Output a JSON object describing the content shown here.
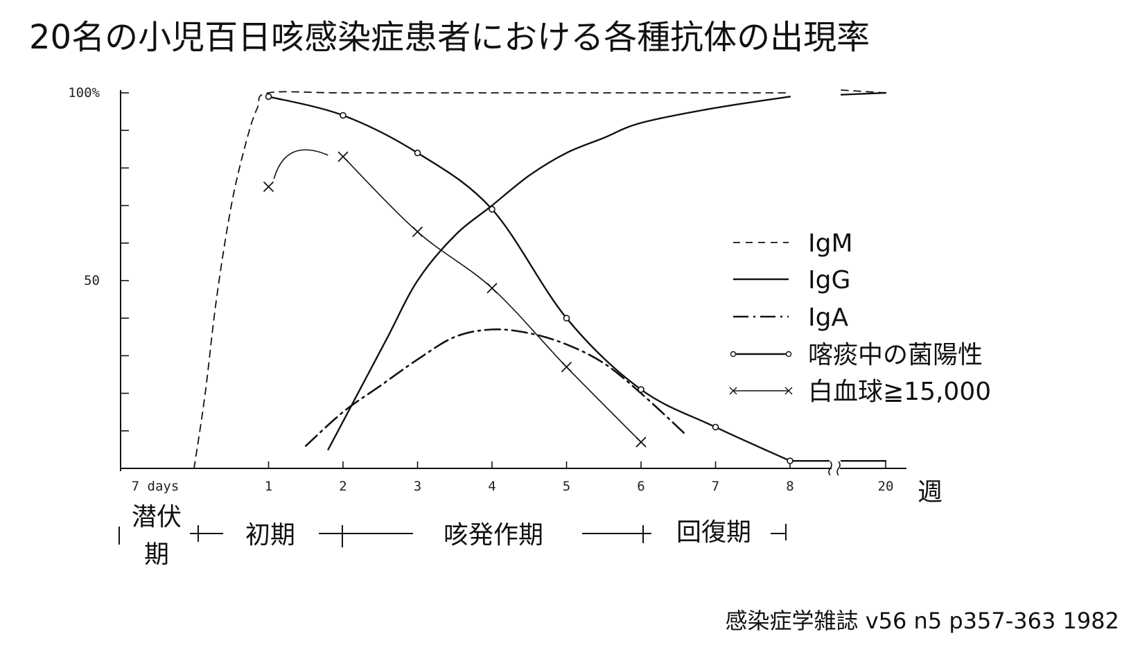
{
  "title": "20名の小児百日咳感染症患者における各種抗体の出現率",
  "citation": "感染症学雑誌 v56 n5 p357-363 1982",
  "chart_data": {
    "type": "line",
    "x_unit_label": "週",
    "x_ticks": [
      {
        "x": 0,
        "label": "7 days"
      },
      {
        "x": 1,
        "label": "1"
      },
      {
        "x": 2,
        "label": "2"
      },
      {
        "x": 3,
        "label": "3"
      },
      {
        "x": 4,
        "label": "4"
      },
      {
        "x": 5,
        "label": "5"
      },
      {
        "x": 6,
        "label": "6"
      },
      {
        "x": 7,
        "label": "7"
      },
      {
        "x": 8,
        "label": "8"
      },
      {
        "x": 20,
        "label": "20"
      }
    ],
    "y_ticks": [
      {
        "y": 100,
        "label": "100%"
      },
      {
        "y": 50,
        "label": "50"
      }
    ],
    "ylim": [
      0,
      100
    ],
    "axis_break": "between 8 and 20",
    "legend_position": "right",
    "series": [
      {
        "name": "IgM",
        "style": "dashed",
        "x": [
          0.0,
          0.15,
          0.3,
          0.5,
          0.7,
          0.85,
          1.0,
          2,
          4,
          6,
          8,
          20
        ],
        "y": [
          0,
          20,
          45,
          70,
          87,
          96,
          100,
          100,
          100,
          100,
          100,
          100
        ]
      },
      {
        "name": "IgG",
        "style": "solid",
        "x": [
          1.8,
          2.2,
          2.6,
          3.0,
          3.5,
          4.0,
          4.5,
          5.0,
          5.5,
          6.0,
          7.0,
          8.0,
          20
        ],
        "y": [
          5,
          20,
          35,
          50,
          62,
          70,
          78,
          84,
          88,
          92,
          96,
          99,
          100
        ]
      },
      {
        "name": "IgA",
        "style": "dashdot",
        "x": [
          1.5,
          2.0,
          2.5,
          3.0,
          3.5,
          4.0,
          4.5,
          5.0,
          5.5,
          6.0,
          6.6
        ],
        "y": [
          6,
          15,
          22,
          29,
          35,
          37,
          36,
          33,
          28,
          20,
          9
        ]
      },
      {
        "name": "喀痰中の菌陽性",
        "style": "solid-circle",
        "x": [
          1,
          2,
          3,
          4,
          5,
          6,
          7,
          8,
          20
        ],
        "y": [
          99,
          94,
          84,
          69,
          40,
          21,
          11,
          2,
          2
        ]
      },
      {
        "name": "白血球≧15,000",
        "style": "thin-cross",
        "x": [
          1,
          2,
          3,
          4,
          5,
          6
        ],
        "y": [
          75,
          83,
          63,
          48,
          27,
          7
        ],
        "curve_peak": {
          "x": 1.7,
          "y": 84
        }
      }
    ],
    "phases": [
      {
        "label": "潜伏\n期"
      },
      {
        "label": "初期"
      },
      {
        "label": "咳発作期"
      },
      {
        "label": "回復期"
      }
    ]
  }
}
